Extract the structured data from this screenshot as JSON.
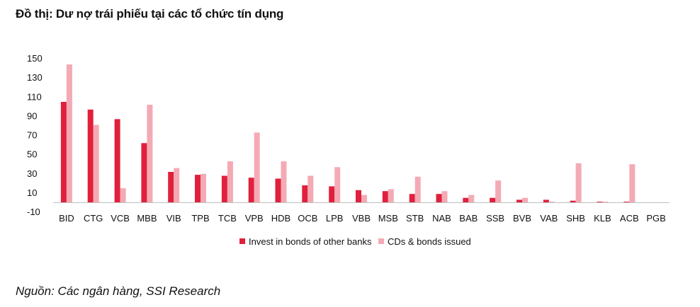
{
  "title": "Đồ thị: Dư nợ trái phiếu tại các tổ chức tín dụng",
  "source": "Nguồn: Các ngân hàng, SSI Research",
  "colors": {
    "series1": "#e0203c",
    "series2": "#f4aab4",
    "axis": "#bfbfbf"
  },
  "chart_data": {
    "type": "bar",
    "title": "Đồ thị: Dư nợ trái phiếu tại các tổ chức tín dụng",
    "xlabel": "",
    "ylabel": "",
    "ylim": [
      -10,
      150
    ],
    "yticks": [
      -10,
      10,
      30,
      50,
      70,
      90,
      110,
      130,
      150
    ],
    "ytick_labels": [
      "-10",
      "10",
      "30",
      "50",
      "70",
      "90",
      "110",
      "130",
      "150"
    ],
    "grid": false,
    "legend_position": "bottom",
    "categories": [
      "BID",
      "CTG",
      "VCB",
      "MBB",
      "VIB",
      "TPB",
      "TCB",
      "VPB",
      "HDB",
      "OCB",
      "LPB",
      "VBB",
      "MSB",
      "STB",
      "NAB",
      "BAB",
      "SSB",
      "BVB",
      "VAB",
      "SHB",
      "KLB",
      "ACB",
      "PGB"
    ],
    "series": [
      {
        "name": "Invest in bonds of other banks",
        "values": [
          105,
          97,
          87,
          62,
          32,
          29,
          28,
          26,
          25,
          18,
          17,
          13,
          12,
          9,
          9,
          5,
          5,
          3,
          3,
          2,
          1,
          1,
          0
        ]
      },
      {
        "name": "CDs & bonds issued",
        "values": [
          144,
          81,
          15,
          102,
          36,
          30,
          43,
          73,
          43,
          28,
          37,
          8,
          14,
          27,
          12,
          8,
          23,
          5,
          1,
          41,
          1,
          40,
          0
        ]
      }
    ]
  }
}
